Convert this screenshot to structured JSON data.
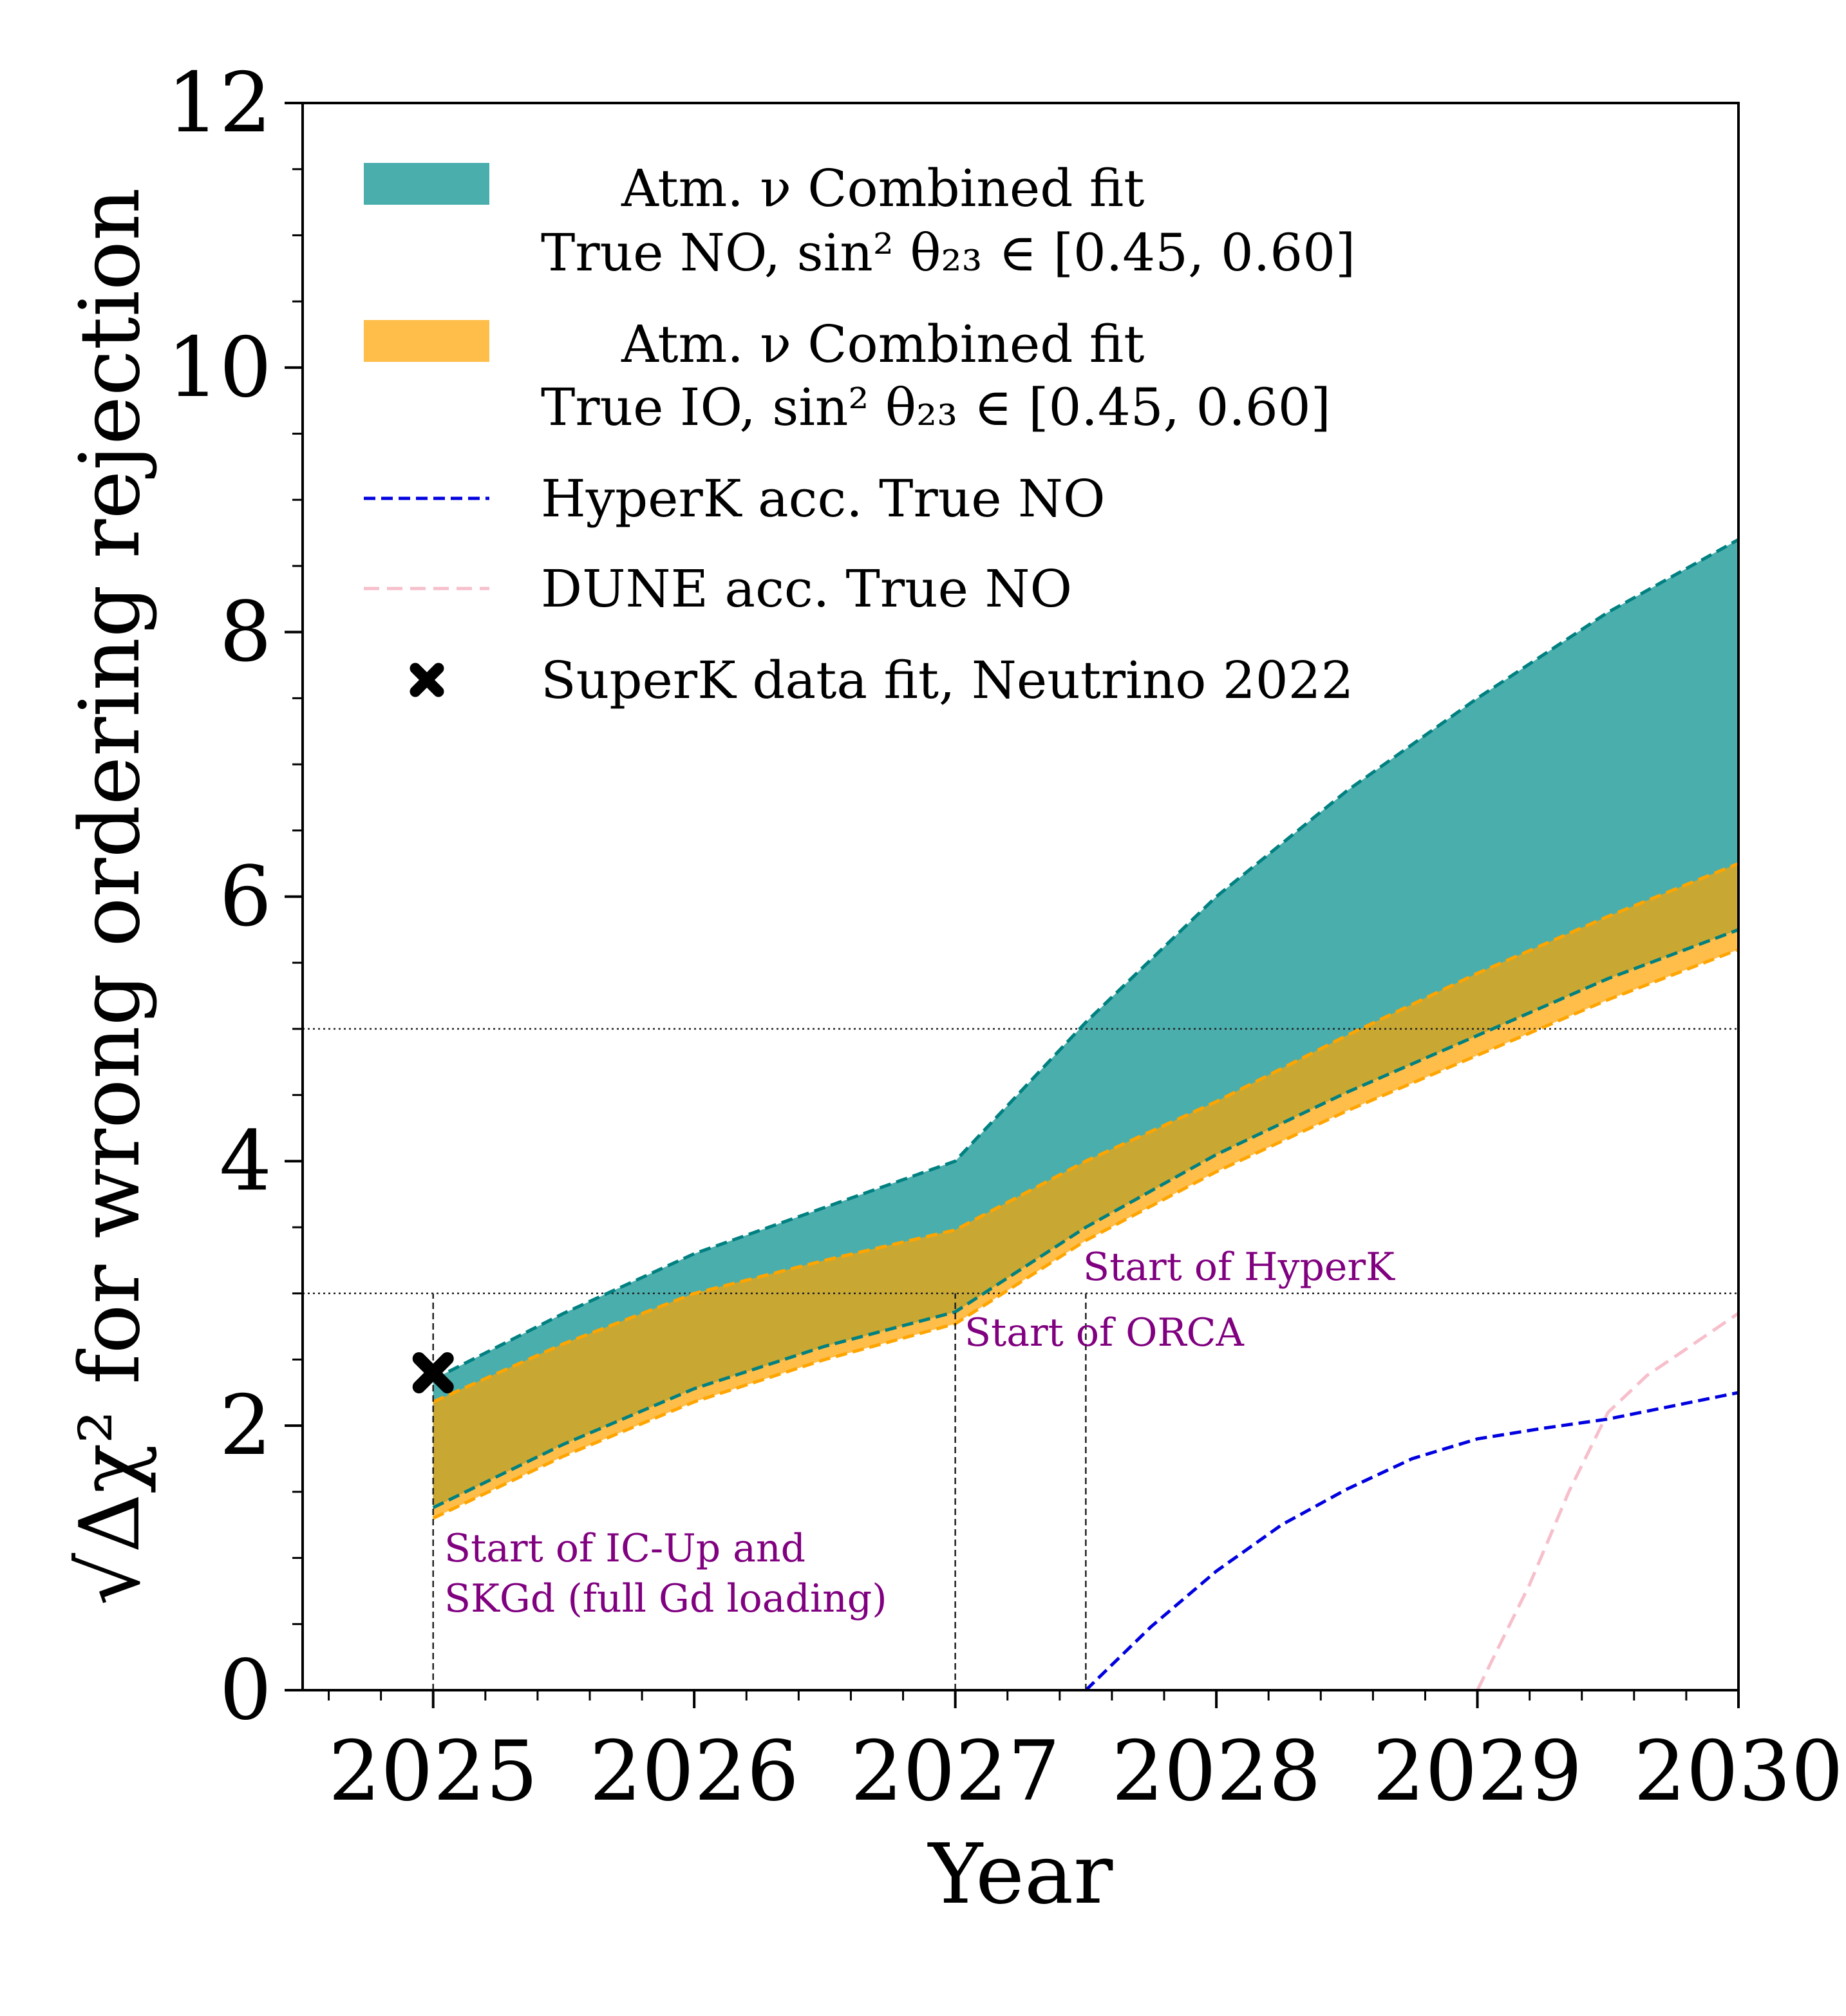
{
  "chart_data": {
    "type": "area",
    "title": "",
    "xlabel": "Year",
    "ylabel": "√Δχ² for wrong ordering rejection",
    "xlim": [
      2024.5,
      2030
    ],
    "ylim": [
      0,
      12
    ],
    "xticks": [
      2025,
      2026,
      2027,
      2028,
      2029,
      2030
    ],
    "xtick_labels": [
      "2025",
      "2026",
      "2027",
      "2028",
      "2029",
      "2030"
    ],
    "yticks": [
      0,
      2,
      4,
      6,
      8,
      10,
      12
    ],
    "ytick_labels": [
      "0",
      "2",
      "4",
      "6",
      "8",
      "10",
      "12"
    ],
    "reference_lines_y": [
      3,
      5
    ],
    "colors": {
      "no_band": "#4aaead",
      "no_edge": "#008080",
      "io_band": "#ffbd4a",
      "io_edge": "#ffa500",
      "overlap": "#c9a733",
      "hyperk": "#0000e0",
      "dune": "#f7bfcb",
      "annotation": "#800080"
    },
    "series": [
      {
        "name": "Atm. ν Combined fit, True NO, sin²θ23 ∈ [0.45, 0.60]",
        "kind": "band",
        "x": [
          2025,
          2025.5,
          2026,
          2026.5,
          2027,
          2027.5,
          2028,
          2028.5,
          2029,
          2029.5,
          2030
        ],
        "upper": [
          2.35,
          2.85,
          3.3,
          3.65,
          4.0,
          5.05,
          6.0,
          6.8,
          7.5,
          8.15,
          8.7
        ],
        "lower": [
          1.38,
          1.86,
          2.28,
          2.6,
          2.86,
          3.5,
          4.05,
          4.52,
          4.95,
          5.38,
          5.75
        ]
      },
      {
        "name": "Atm. ν Combined fit, True IO, sin²θ23 ∈ [0.45, 0.60]",
        "kind": "band",
        "x": [
          2025,
          2025.5,
          2026,
          2026.5,
          2027,
          2027.5,
          2028,
          2028.5,
          2029,
          2029.5,
          2030
        ],
        "upper": [
          2.18,
          2.62,
          3.0,
          3.25,
          3.48,
          4.0,
          4.45,
          4.95,
          5.42,
          5.85,
          6.25
        ],
        "lower": [
          1.3,
          1.77,
          2.18,
          2.5,
          2.77,
          3.4,
          3.92,
          4.38,
          4.8,
          5.22,
          5.6
        ]
      },
      {
        "name": "HyperK acc. True NO",
        "kind": "line",
        "x": [
          2027.5,
          2027.75,
          2028,
          2028.25,
          2028.5,
          2028.75,
          2029,
          2029.25,
          2029.5,
          2029.75,
          2030
        ],
        "values": [
          0.0,
          0.48,
          0.9,
          1.25,
          1.52,
          1.75,
          1.9,
          1.98,
          2.05,
          2.15,
          2.25
        ]
      },
      {
        "name": "DUNE acc. True NO",
        "kind": "line",
        "x": [
          2029.0,
          2029.2,
          2029.35,
          2029.5,
          2029.65,
          2029.8,
          2030
        ],
        "values": [
          0.0,
          0.8,
          1.5,
          2.1,
          2.38,
          2.58,
          2.85
        ]
      },
      {
        "name": "SuperK data fit, Neutrino 2022",
        "kind": "marker",
        "x": [
          2025.0
        ],
        "values": [
          2.4
        ]
      }
    ],
    "legend": {
      "position": "upper-left",
      "entries": [
        {
          "line1": "Atm. ν Combined fit",
          "line2": "True NO, sin² θ₂₃ ∈ [0.45, 0.60]"
        },
        {
          "line1": "Atm. ν Combined fit",
          "line2": "True IO, sin² θ₂₃ ∈ [0.45, 0.60]"
        },
        {
          "line1": "HyperK acc. True NO"
        },
        {
          "line1": "DUNE acc. True NO"
        },
        {
          "line1": "SuperK data fit, Neutrino 2022"
        }
      ]
    },
    "annotations": [
      {
        "lines": [
          "Start of IC-Up and",
          "SKGd (full Gd loading)"
        ],
        "x": 2025.0
      },
      {
        "lines": [
          "Start of ORCA"
        ],
        "x": 2027.0
      },
      {
        "lines": [
          "Start of HyperK"
        ],
        "x": 2027.5
      }
    ]
  }
}
